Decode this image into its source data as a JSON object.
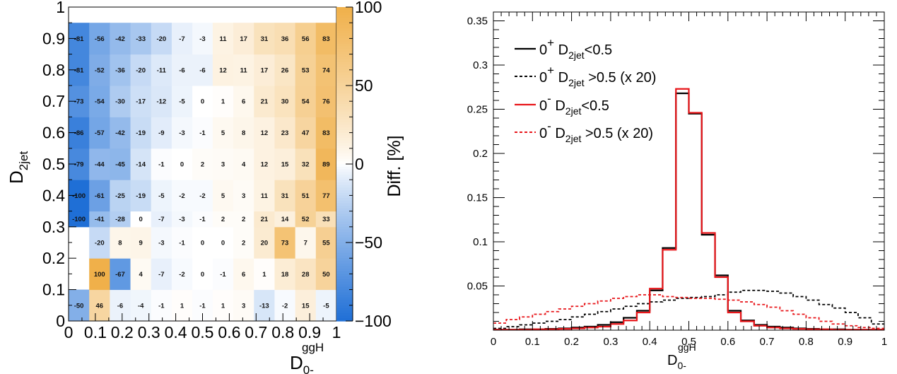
{
  "chart_data": [
    {
      "type": "heatmap",
      "title": "",
      "xlabel": "D",
      "xlabel_sub": "0-",
      "xlabel_sup": "ggH",
      "ylabel": "D",
      "ylabel_sub": "2jet",
      "xlim": [
        0,
        1
      ],
      "ylim": [
        0,
        1
      ],
      "x_edges": [
        0,
        0.077,
        0.154,
        0.231,
        0.308,
        0.385,
        0.462,
        0.538,
        0.615,
        0.692,
        0.769,
        0.846,
        0.923,
        1.0
      ],
      "y_edges": [
        0,
        0.1,
        0.2,
        0.3,
        0.35,
        0.45,
        0.55,
        0.65,
        0.75,
        0.85,
        0.95,
        1.0
      ],
      "x_ticks": [
        "0",
        "0.1",
        "0.2",
        "0.3",
        "0.4",
        "0.5",
        "0.6",
        "0.7",
        "0.8",
        "0.9",
        "1"
      ],
      "y_ticks": [
        "0",
        "0.1",
        "0.2",
        "0.3",
        "0.4",
        "0.5",
        "0.6",
        "0.7",
        "0.8",
        "0.9",
        "1"
      ],
      "values": [
        [
          -50,
          46,
          -6,
          -4,
          -1,
          1,
          -1,
          1,
          3,
          -13,
          -2,
          15,
          -5
        ],
        [
          null,
          100,
          -67,
          4,
          -7,
          -2,
          0,
          -1,
          6,
          1,
          18,
          28,
          50
        ],
        [
          null,
          -20,
          8,
          9,
          -3,
          -1,
          0,
          0,
          2,
          20,
          73,
          7,
          55
        ],
        [
          -100,
          -41,
          -28,
          0,
          -7,
          -3,
          -1,
          2,
          2,
          21,
          14,
          52,
          33
        ],
        [
          -100,
          -61,
          -25,
          -19,
          -5,
          -2,
          -2,
          5,
          3,
          11,
          31,
          51,
          77
        ],
        [
          -79,
          -44,
          -45,
          -14,
          -1,
          0,
          2,
          3,
          4,
          12,
          15,
          32,
          89
        ],
        [
          -86,
          -57,
          -42,
          -19,
          -9,
          -3,
          -1,
          5,
          8,
          12,
          23,
          47,
          83
        ],
        [
          -73,
          -54,
          -30,
          -17,
          -12,
          -5,
          0,
          1,
          6,
          21,
          30,
          54,
          76
        ],
        [
          -81,
          -52,
          -36,
          -20,
          -11,
          -6,
          -6,
          12,
          11,
          17,
          26,
          53,
          74
        ],
        [
          -81,
          -56,
          -42,
          -33,
          -20,
          -7,
          -3,
          11,
          17,
          31,
          36,
          56,
          83
        ]
      ],
      "colorbar": {
        "label": "Diff. [%]",
        "range": [
          -100,
          100
        ],
        "ticks": [
          "100",
          "50",
          "0",
          "−50",
          "−100"
        ]
      },
      "colors": {
        "negative": "#1f6fd6",
        "zero": "#ffffff",
        "positive": "#f0b04a"
      }
    },
    {
      "type": "line",
      "title": "",
      "xlabel": "D",
      "xlabel_sub": "0-",
      "xlabel_sup": "ggH",
      "ylabel": "",
      "xlim": [
        0,
        1
      ],
      "ylim": [
        0,
        0.36
      ],
      "x_ticks": [
        "0",
        "0.1",
        "0.2",
        "0.3",
        "0.4",
        "0.5",
        "0.6",
        "0.7",
        "0.8",
        "0.9",
        "1"
      ],
      "y_ticks": [
        "0.05",
        "0.1",
        "0.15",
        "0.2",
        "0.25",
        "0.3",
        "0.35"
      ],
      "bin_edges": [
        0,
        0.033,
        0.067,
        0.1,
        0.133,
        0.167,
        0.2,
        0.233,
        0.267,
        0.3,
        0.333,
        0.367,
        0.4,
        0.433,
        0.467,
        0.5,
        0.533,
        0.567,
        0.6,
        0.633,
        0.667,
        0.7,
        0.733,
        0.767,
        0.8,
        0.833,
        0.867,
        0.9,
        0.933,
        0.967,
        1.0
      ],
      "legend": {
        "placement": "top-left",
        "entries": [
          {
            "main": "0",
            "sup": "+",
            "text_pre": " D",
            "sub": "2jet",
            "text_post": "<0.5"
          },
          {
            "main": "0",
            "sup": "+",
            "text_pre": " D",
            "sub": "2jet",
            "text_post": " >0.5 (x 20)"
          },
          {
            "main": "0",
            "sup": "-",
            "text_pre": " D",
            "sub": "2jet",
            "text_post": "<0.5"
          },
          {
            "main": "0",
            "sup": "-",
            "text_pre": " D",
            "sub": "2jet",
            "text_post": " >0.5 (x 20)"
          }
        ]
      },
      "series": [
        {
          "name": "0+ D2jet<0.5",
          "color": "#000000",
          "dashed": false,
          "values": [
            0.0005,
            0.0005,
            0.001,
            0.001,
            0.0015,
            0.002,
            0.003,
            0.004,
            0.006,
            0.009,
            0.014,
            0.022,
            0.045,
            0.093,
            0.268,
            0.245,
            0.108,
            0.062,
            0.022,
            0.011,
            0.006,
            0.004,
            0.003,
            0.002,
            0.0015,
            0.001,
            0.001,
            0.0005,
            0.0005,
            0.0005
          ]
        },
        {
          "name": "0+ D2jet >0.5 (x 20)",
          "color": "#000000",
          "dashed": true,
          "values": [
            0.002,
            0.004,
            0.006,
            0.008,
            0.01,
            0.012,
            0.015,
            0.018,
            0.021,
            0.024,
            0.027,
            0.03,
            0.032,
            0.034,
            0.036,
            0.037,
            0.038,
            0.04,
            0.043,
            0.045,
            0.045,
            0.044,
            0.042,
            0.038,
            0.034,
            0.029,
            0.025,
            0.02,
            0.014,
            0.007
          ]
        },
        {
          "name": "0- D2jet<0.5",
          "color": "#e8161a",
          "dashed": false,
          "values": [
            0.0005,
            0.0005,
            0.0005,
            0.001,
            0.001,
            0.0015,
            0.002,
            0.003,
            0.004,
            0.007,
            0.011,
            0.02,
            0.047,
            0.091,
            0.273,
            0.246,
            0.11,
            0.06,
            0.02,
            0.01,
            0.005,
            0.003,
            0.002,
            0.0015,
            0.001,
            0.001,
            0.0005,
            0.0005,
            0.0005,
            0.0005
          ]
        },
        {
          "name": "0- D2jet >0.5 (x 20)",
          "color": "#e8161a",
          "dashed": true,
          "values": [
            0.008,
            0.012,
            0.015,
            0.018,
            0.021,
            0.024,
            0.027,
            0.03,
            0.033,
            0.036,
            0.038,
            0.04,
            0.04,
            0.038,
            0.037,
            0.036,
            0.036,
            0.035,
            0.034,
            0.032,
            0.029,
            0.026,
            0.022,
            0.018,
            0.014,
            0.01,
            0.007,
            0.005,
            0.003,
            0.002
          ]
        }
      ]
    }
  ]
}
